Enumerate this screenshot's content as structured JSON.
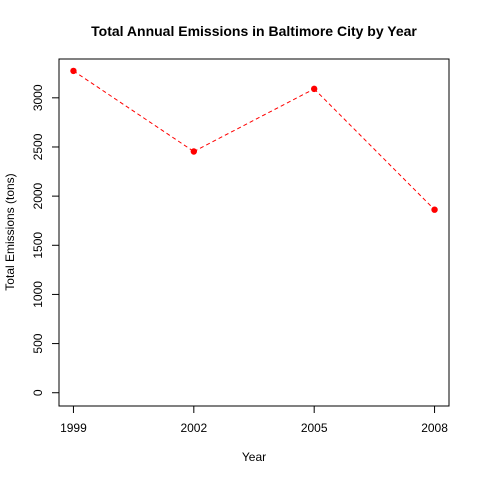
{
  "chart_data": {
    "type": "line",
    "title": "Total Annual Emissions in Baltimore City by Year",
    "xlabel": "Year",
    "ylabel": "Total Emissions (tons)",
    "x": [
      1999,
      2002,
      2005,
      2008
    ],
    "xticks": [
      "1999",
      "2002",
      "2005",
      "2008"
    ],
    "yticks": [
      "0",
      "500",
      "1000",
      "1500",
      "2000",
      "2500",
      "3000"
    ],
    "ylim": [
      -135,
      3395
    ],
    "series": [
      {
        "values": [
          3274,
          2454,
          3091,
          1862
        ],
        "color": "#ff0000",
        "line_style": "dashed",
        "marker": "filled-circle"
      }
    ],
    "grid": false,
    "legend": "none"
  }
}
